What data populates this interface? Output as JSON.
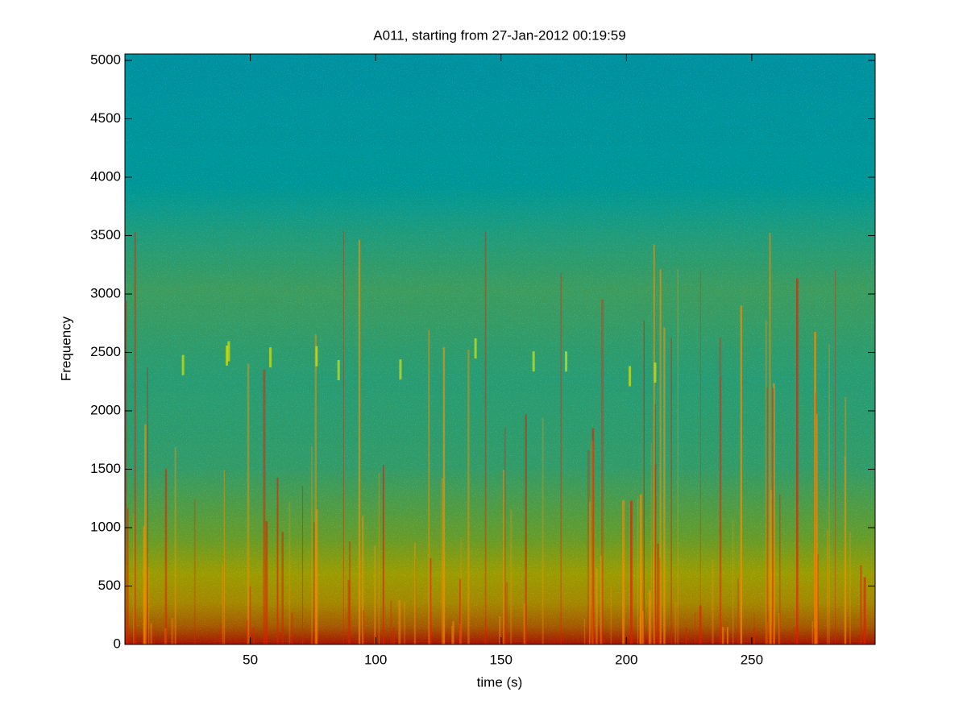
{
  "chart_data": {
    "type": "spectrogram",
    "title": "A011, starting from 27-Jan-2012 00:19:59",
    "xlabel": "time (s)",
    "ylabel": "Frequency",
    "xlim": [
      0,
      299.2
    ],
    "xticks": [
      50,
      100,
      150,
      200,
      250
    ],
    "ylim": [
      0,
      5055
    ],
    "yticks": [
      0,
      500,
      1000,
      1500,
      2000,
      2500,
      3000,
      3500,
      4000,
      4500,
      5000
    ]
  }
}
